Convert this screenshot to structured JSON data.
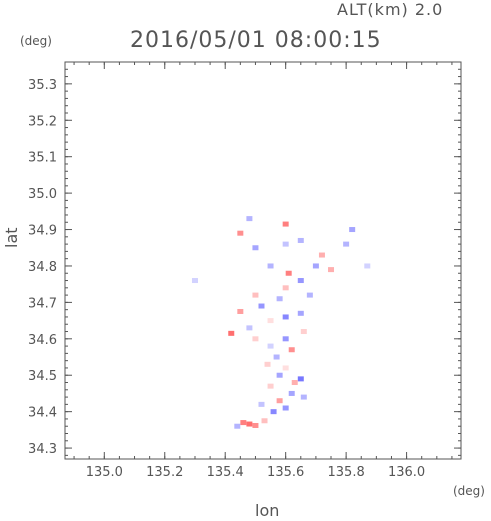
{
  "header": {
    "alt_label": "ALT(km) 2.0",
    "timestamp": "2016/05/01 08:00:15"
  },
  "chart_data": {
    "type": "scatter",
    "title": "2016/05/01 08:00:15",
    "xlabel": "lon",
    "ylabel": "lat",
    "x_unit": "(deg)",
    "y_unit": "(deg)",
    "xlim": [
      134.87,
      136.18
    ],
    "ylim": [
      34.27,
      35.36
    ],
    "xticks": [
      135.0,
      135.2,
      135.4,
      135.6,
      135.8,
      136.0
    ],
    "xtick_labels": [
      "135.0",
      "135.2",
      "135.4",
      "135.6",
      "135.8",
      "136.0"
    ],
    "yticks": [
      34.3,
      34.4,
      34.5,
      34.6,
      34.7,
      34.8,
      34.9,
      35.0,
      35.1,
      35.2,
      35.3
    ],
    "ytick_labels": [
      "34.3",
      "34.4",
      "34.5",
      "34.6",
      "34.7",
      "34.8",
      "34.9",
      "35.0",
      "35.1",
      "35.2",
      "35.3"
    ],
    "grid": false,
    "colors": {
      "positive": "#ff6666",
      "negative": "#7777ff",
      "neutral": "#ffdddd"
    },
    "points": [
      {
        "lon": 135.48,
        "lat": 34.366,
        "v": 0.9
      },
      {
        "lon": 135.46,
        "lat": 34.37,
        "v": 0.8
      },
      {
        "lon": 135.5,
        "lat": 34.362,
        "v": 0.7
      },
      {
        "lon": 135.44,
        "lat": 34.36,
        "v": -0.5
      },
      {
        "lon": 135.53,
        "lat": 34.375,
        "v": 0.4
      },
      {
        "lon": 135.56,
        "lat": 34.4,
        "v": -0.8
      },
      {
        "lon": 135.6,
        "lat": 34.41,
        "v": -0.7
      },
      {
        "lon": 135.58,
        "lat": 34.43,
        "v": 0.6
      },
      {
        "lon": 135.52,
        "lat": 34.42,
        "v": -0.4
      },
      {
        "lon": 135.62,
        "lat": 34.45,
        "v": -0.6
      },
      {
        "lon": 135.66,
        "lat": 34.44,
        "v": -0.5
      },
      {
        "lon": 135.65,
        "lat": 34.49,
        "v": -0.9
      },
      {
        "lon": 135.63,
        "lat": 34.48,
        "v": 0.5
      },
      {
        "lon": 135.58,
        "lat": 34.5,
        "v": -0.6
      },
      {
        "lon": 135.55,
        "lat": 34.47,
        "v": 0.3
      },
      {
        "lon": 135.6,
        "lat": 34.52,
        "v": 0.2
      },
      {
        "lon": 135.57,
        "lat": 34.55,
        "v": -0.5
      },
      {
        "lon": 135.62,
        "lat": 34.57,
        "v": 0.7
      },
      {
        "lon": 135.55,
        "lat": 34.58,
        "v": -0.3
      },
      {
        "lon": 135.6,
        "lat": 34.6,
        "v": -0.7
      },
      {
        "lon": 135.5,
        "lat": 34.6,
        "v": 0.3
      },
      {
        "lon": 135.48,
        "lat": 34.63,
        "v": -0.4
      },
      {
        "lon": 135.42,
        "lat": 34.615,
        "v": 0.9
      },
      {
        "lon": 135.55,
        "lat": 34.65,
        "v": 0.2
      },
      {
        "lon": 135.6,
        "lat": 34.66,
        "v": -0.8
      },
      {
        "lon": 135.65,
        "lat": 34.67,
        "v": -0.6
      },
      {
        "lon": 135.52,
        "lat": 34.69,
        "v": -0.7
      },
      {
        "lon": 135.45,
        "lat": 34.675,
        "v": 0.6
      },
      {
        "lon": 135.58,
        "lat": 34.71,
        "v": -0.5
      },
      {
        "lon": 135.6,
        "lat": 34.74,
        "v": 0.4
      },
      {
        "lon": 135.65,
        "lat": 34.76,
        "v": -0.7
      },
      {
        "lon": 135.61,
        "lat": 34.78,
        "v": 0.8
      },
      {
        "lon": 135.7,
        "lat": 34.8,
        "v": -0.6
      },
      {
        "lon": 135.75,
        "lat": 34.79,
        "v": 0.5
      },
      {
        "lon": 135.55,
        "lat": 34.8,
        "v": -0.5
      },
      {
        "lon": 135.5,
        "lat": 34.85,
        "v": -0.6
      },
      {
        "lon": 135.6,
        "lat": 34.86,
        "v": -0.4
      },
      {
        "lon": 135.65,
        "lat": 34.87,
        "v": -0.5
      },
      {
        "lon": 135.6,
        "lat": 34.915,
        "v": 0.8
      },
      {
        "lon": 135.45,
        "lat": 34.89,
        "v": 0.7
      },
      {
        "lon": 135.48,
        "lat": 34.93,
        "v": -0.5
      },
      {
        "lon": 135.82,
        "lat": 34.9,
        "v": -0.6
      },
      {
        "lon": 135.8,
        "lat": 34.86,
        "v": -0.5
      },
      {
        "lon": 135.87,
        "lat": 34.8,
        "v": -0.3
      },
      {
        "lon": 135.3,
        "lat": 34.76,
        "v": -0.3
      },
      {
        "lon": 135.72,
        "lat": 34.83,
        "v": 0.5
      },
      {
        "lon": 135.68,
        "lat": 34.72,
        "v": -0.5
      },
      {
        "lon": 135.54,
        "lat": 34.53,
        "v": 0.3
      },
      {
        "lon": 135.66,
        "lat": 34.62,
        "v": 0.3
      },
      {
        "lon": 135.5,
        "lat": 34.72,
        "v": 0.4
      }
    ]
  }
}
